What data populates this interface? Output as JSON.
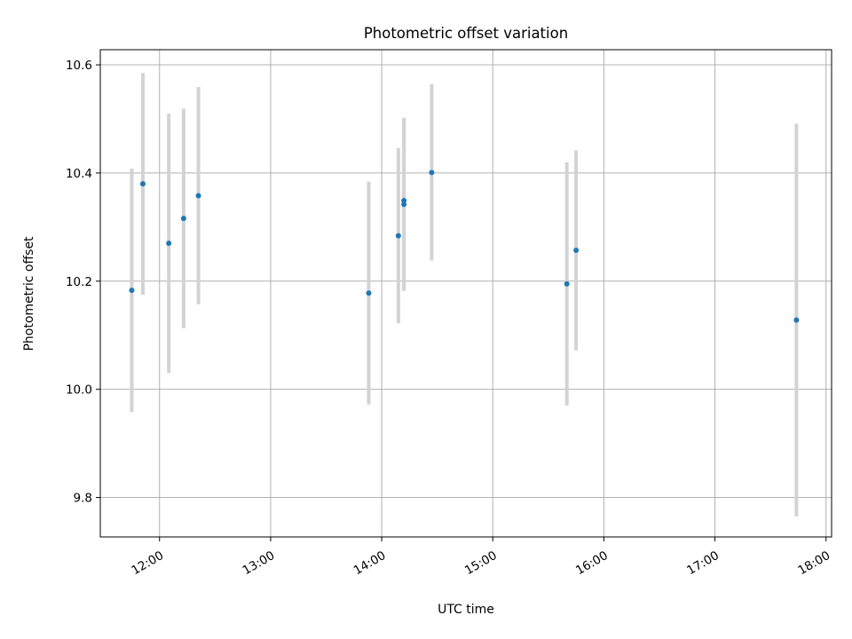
{
  "chart_data": {
    "type": "scatter",
    "title": "Photometric offset variation",
    "xlabel": "UTC time",
    "ylabel": "Photometric offset",
    "x_is_time": true,
    "xlim": [
      "11:28",
      "18:03"
    ],
    "ylim": [
      9.727,
      10.628
    ],
    "x_ticks": [
      "12:00",
      "13:00",
      "14:00",
      "15:00",
      "16:00",
      "17:00",
      "18:00"
    ],
    "y_ticks": [
      9.8,
      10.0,
      10.2,
      10.4,
      10.6
    ],
    "y_tick_labels": [
      "9.8",
      "10.0",
      "10.2",
      "10.4",
      "10.6"
    ],
    "grid": true,
    "colors": {
      "marker": "#1f77b4",
      "errorbar": "#d3d3d3",
      "grid": "#b0b0b0"
    },
    "points": [
      {
        "time": "11:45",
        "y": 10.183,
        "err": 0.225
      },
      {
        "time": "11:51",
        "y": 10.38,
        "err": 0.205
      },
      {
        "time": "12:05",
        "y": 10.27,
        "err": 0.24
      },
      {
        "time": "12:13",
        "y": 10.316,
        "err": 0.203
      },
      {
        "time": "12:21",
        "y": 10.358,
        "err": 0.201
      },
      {
        "time": "13:53",
        "y": 10.178,
        "err": 0.206
      },
      {
        "time": "14:09",
        "y": 10.284,
        "err": 0.162
      },
      {
        "time": "14:12",
        "y": 10.349,
        "err": 0.15
      },
      {
        "time": "14:12",
        "y": 10.342,
        "err": 0.16
      },
      {
        "time": "14:27",
        "y": 10.401,
        "err": 0.163
      },
      {
        "time": "15:40",
        "y": 10.195,
        "err": 0.225
      },
      {
        "time": "15:45",
        "y": 10.257,
        "err": 0.185
      },
      {
        "time": "17:44",
        "y": 10.128,
        "err": 0.363
      }
    ]
  }
}
